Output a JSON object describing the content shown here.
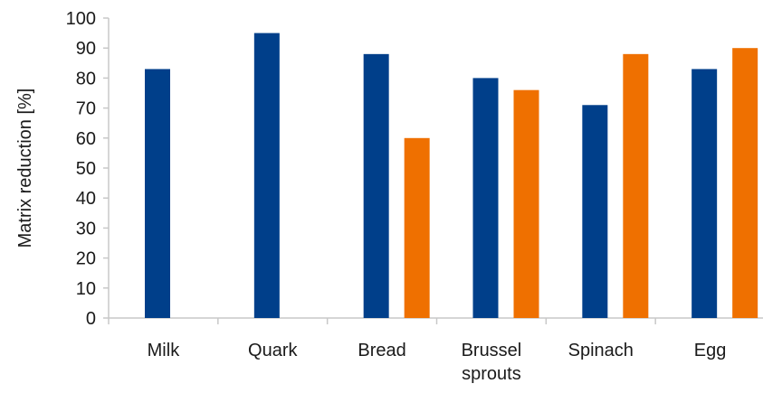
{
  "chart_data": {
    "type": "bar",
    "title": "",
    "xlabel": "",
    "ylabel": "Matrix reduction [%]",
    "ylim": [
      0,
      100
    ],
    "yticks": [
      0,
      10,
      20,
      30,
      40,
      50,
      60,
      70,
      80,
      90,
      100
    ],
    "categories": [
      [
        "Milk"
      ],
      [
        "Quark"
      ],
      [
        "Bread"
      ],
      [
        "Brussel",
        "sprouts"
      ],
      [
        "Spinach"
      ],
      [
        "Egg"
      ]
    ],
    "series": [
      {
        "color": "#003f8a",
        "values": [
          83,
          95,
          88,
          80,
          71,
          83
        ]
      },
      {
        "color": "#ef7000",
        "values": [
          null,
          null,
          60,
          76,
          88,
          90
        ]
      }
    ],
    "grid": false,
    "legend": "none"
  }
}
